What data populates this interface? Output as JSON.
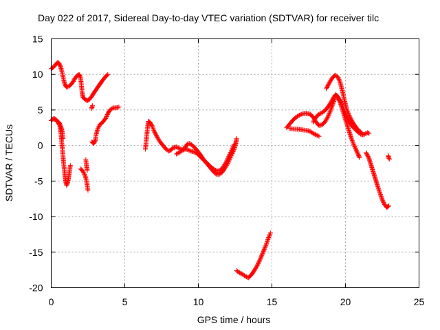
{
  "chart_data": {
    "type": "scatter",
    "title": "Day 022 of 2017, Sidereal Day-to-day VTEC variation (SDTVAR) for receiver tilc",
    "xlabel": "GPS time / hours",
    "ylabel": "SDTVAR / TECUs",
    "xlim": [
      0,
      25
    ],
    "ylim": [
      -20,
      15
    ],
    "x_ticks": [
      0,
      5,
      10,
      15,
      20,
      25
    ],
    "y_ticks": [
      -20,
      -15,
      -10,
      -5,
      0,
      5,
      10,
      15
    ],
    "x_tick_labels": [
      "0",
      "5",
      "10",
      "15",
      "20",
      "25"
    ],
    "y_tick_labels": [
      "-20",
      "-15",
      "-10",
      "-5",
      "0",
      "5",
      "10",
      "15"
    ],
    "grid": true,
    "marker": "plus",
    "color": "#ff0000",
    "segments": [
      [
        [
          0.0,
          10.8
        ],
        [
          0.15,
          11.0
        ],
        [
          0.3,
          11.4
        ],
        [
          0.45,
          11.7
        ],
        [
          0.55,
          11.5
        ],
        [
          0.65,
          11.0
        ],
        [
          0.75,
          10.2
        ],
        [
          0.85,
          9.2
        ],
        [
          0.95,
          8.5
        ],
        [
          1.05,
          8.2
        ],
        [
          1.2,
          8.3
        ],
        [
          1.35,
          8.6
        ],
        [
          1.5,
          9.0
        ],
        [
          1.6,
          9.4
        ],
        [
          1.75,
          9.8
        ],
        [
          1.9,
          10.0
        ],
        [
          2.0,
          9.5
        ],
        [
          2.05,
          8.5
        ],
        [
          2.1,
          7.5
        ],
        [
          2.15,
          6.8
        ],
        [
          2.3,
          6.5
        ],
        [
          2.45,
          6.3
        ],
        [
          2.6,
          6.5
        ],
        [
          2.75,
          6.9
        ],
        [
          2.9,
          7.4
        ],
        [
          3.1,
          8.0
        ],
        [
          3.3,
          8.6
        ],
        [
          3.5,
          9.2
        ],
        [
          3.7,
          9.7
        ],
        [
          3.85,
          10.0
        ]
      ],
      [
        [
          0.0,
          3.5
        ],
        [
          0.1,
          3.7
        ],
        [
          0.2,
          3.8
        ],
        [
          0.35,
          3.6
        ],
        [
          0.5,
          3.2
        ],
        [
          0.6,
          2.6
        ],
        [
          0.65,
          1.8
        ],
        [
          0.7,
          0.8
        ],
        [
          0.75,
          -0.3
        ],
        [
          0.8,
          -1.5
        ],
        [
          0.85,
          -2.6
        ],
        [
          0.9,
          -3.6
        ],
        [
          0.95,
          -4.5
        ],
        [
          1.0,
          -5.2
        ],
        [
          1.05,
          -5.6
        ],
        [
          1.12,
          -5.2
        ],
        [
          1.18,
          -4.5
        ],
        [
          1.25,
          -3.6
        ],
        [
          1.3,
          -2.8
        ]
      ],
      [
        [
          0.35,
          3.4
        ],
        [
          0.5,
          3.3
        ],
        [
          0.6,
          3.0
        ],
        [
          0.7,
          2.4
        ],
        [
          0.75,
          1.8
        ],
        [
          0.8,
          1.0
        ]
      ],
      [
        [
          2.0,
          -3.3
        ],
        [
          2.15,
          -3.6
        ],
        [
          2.3,
          -4.2
        ],
        [
          2.4,
          -5.0
        ],
        [
          2.5,
          -6.3
        ]
      ],
      [
        [
          2.35,
          -2.0
        ],
        [
          2.4,
          -2.8
        ],
        [
          2.45,
          -3.5
        ]
      ],
      [
        [
          2.75,
          5.2
        ],
        [
          2.8,
          5.6
        ]
      ],
      [
        [
          2.75,
          0.5
        ],
        [
          2.9,
          0.3
        ],
        [
          3.0,
          0.7
        ],
        [
          3.05,
          1.5
        ],
        [
          3.15,
          2.3
        ],
        [
          3.3,
          2.9
        ],
        [
          3.5,
          3.3
        ],
        [
          3.7,
          3.8
        ],
        [
          3.85,
          4.5
        ],
        [
          4.0,
          5.0
        ],
        [
          4.2,
          5.3
        ],
        [
          4.4,
          5.3
        ],
        [
          4.6,
          5.4
        ]
      ],
      [
        [
          6.4,
          -0.5
        ],
        [
          6.45,
          0.5
        ],
        [
          6.5,
          1.5
        ],
        [
          6.55,
          2.5
        ],
        [
          6.6,
          3.4
        ],
        [
          6.7,
          3.3
        ],
        [
          6.85,
          2.8
        ],
        [
          7.0,
          2.0
        ],
        [
          7.2,
          1.2
        ],
        [
          7.4,
          0.5
        ],
        [
          7.6,
          0.0
        ],
        [
          7.8,
          -0.5
        ],
        [
          8.0,
          -0.8
        ],
        [
          8.15,
          -0.6
        ],
        [
          8.3,
          -0.3
        ],
        [
          8.5,
          -0.2
        ],
        [
          8.7,
          -0.4
        ],
        [
          8.9,
          -0.6
        ],
        [
          9.1,
          -0.3
        ],
        [
          9.25,
          0.2
        ],
        [
          9.4,
          0.3
        ],
        [
          9.6,
          0.0
        ],
        [
          9.8,
          -0.4
        ],
        [
          10.0,
          -0.9
        ],
        [
          10.2,
          -1.5
        ],
        [
          10.4,
          -2.1
        ],
        [
          10.6,
          -2.6
        ],
        [
          10.8,
          -3.1
        ],
        [
          11.0,
          -3.6
        ],
        [
          11.2,
          -4.0
        ],
        [
          11.4,
          -4.1
        ],
        [
          11.6,
          -3.8
        ],
        [
          11.8,
          -3.2
        ],
        [
          12.0,
          -2.5
        ],
        [
          12.2,
          -1.6
        ],
        [
          12.4,
          -0.7
        ],
        [
          12.55,
          0.3
        ],
        [
          12.6,
          1.0
        ]
      ],
      [
        [
          8.5,
          -1.2
        ],
        [
          8.7,
          -1.0
        ],
        [
          8.9,
          -0.7
        ],
        [
          9.1,
          -0.5
        ],
        [
          9.3,
          -0.6
        ],
        [
          9.5,
          -0.8
        ],
        [
          9.7,
          -0.9
        ],
        [
          9.9,
          -1.1
        ],
        [
          10.1,
          -1.5
        ],
        [
          10.3,
          -1.9
        ],
        [
          10.5,
          -2.3
        ],
        [
          10.7,
          -2.7
        ],
        [
          10.9,
          -3.1
        ],
        [
          11.1,
          -3.4
        ],
        [
          11.3,
          -3.6
        ],
        [
          11.5,
          -3.5
        ],
        [
          11.7,
          -3.0
        ],
        [
          11.9,
          -2.3
        ],
        [
          12.1,
          -1.4
        ],
        [
          12.3,
          -0.5
        ],
        [
          12.45,
          0.2
        ]
      ],
      [
        [
          12.6,
          -17.6
        ],
        [
          12.8,
          -17.9
        ],
        [
          13.0,
          -18.1
        ],
        [
          13.2,
          -18.4
        ],
        [
          13.4,
          -18.6
        ],
        [
          13.6,
          -18.2
        ],
        [
          13.8,
          -17.6
        ],
        [
          14.0,
          -16.9
        ],
        [
          14.2,
          -16.0
        ],
        [
          14.4,
          -15.0
        ],
        [
          14.6,
          -14.0
        ],
        [
          14.75,
          -13.1
        ],
        [
          14.9,
          -12.3
        ]
      ],
      [
        [
          16.0,
          2.5
        ],
        [
          16.2,
          3.0
        ],
        [
          16.4,
          3.5
        ],
        [
          16.6,
          3.9
        ],
        [
          16.8,
          4.2
        ],
        [
          17.0,
          4.4
        ],
        [
          17.2,
          4.5
        ],
        [
          17.4,
          4.5
        ],
        [
          17.6,
          4.4
        ],
        [
          17.8,
          4.0
        ],
        [
          18.0,
          3.3
        ],
        [
          18.2,
          2.8
        ],
        [
          18.4,
          2.9
        ],
        [
          18.6,
          3.3
        ],
        [
          18.8,
          4.0
        ],
        [
          19.0,
          5.0
        ],
        [
          19.2,
          6.2
        ],
        [
          19.35,
          7.0
        ],
        [
          19.5,
          6.8
        ],
        [
          19.65,
          6.0
        ],
        [
          19.8,
          5.0
        ],
        [
          19.95,
          4.0
        ],
        [
          20.1,
          3.0
        ],
        [
          20.25,
          2.0
        ],
        [
          20.4,
          1.0
        ],
        [
          20.55,
          0.2
        ],
        [
          20.7,
          -0.5
        ],
        [
          20.85,
          -1.2
        ],
        [
          20.95,
          -1.7
        ]
      ],
      [
        [
          16.2,
          2.4
        ],
        [
          16.5,
          2.3
        ],
        [
          16.8,
          2.3
        ],
        [
          17.1,
          2.2
        ],
        [
          17.4,
          2.1
        ],
        [
          17.6,
          2.0
        ],
        [
          17.8,
          1.7
        ],
        [
          18.0,
          1.5
        ],
        [
          18.2,
          1.3
        ]
      ],
      [
        [
          17.8,
          3.3
        ],
        [
          18.0,
          4.0
        ],
        [
          18.2,
          4.4
        ],
        [
          18.4,
          4.6
        ],
        [
          18.6,
          4.9
        ],
        [
          18.8,
          5.4
        ],
        [
          19.0,
          6.0
        ],
        [
          19.2,
          6.8
        ],
        [
          19.35,
          7.2
        ],
        [
          19.5,
          6.8
        ],
        [
          19.7,
          6.0
        ],
        [
          19.9,
          5.0
        ],
        [
          20.1,
          4.0
        ],
        [
          20.3,
          3.2
        ],
        [
          20.5,
          2.6
        ],
        [
          20.7,
          2.2
        ],
        [
          20.9,
          1.8
        ],
        [
          21.1,
          1.5
        ],
        [
          21.3,
          1.6
        ],
        [
          21.5,
          1.8
        ],
        [
          21.6,
          1.7
        ]
      ],
      [
        [
          18.7,
          8.0
        ],
        [
          18.9,
          8.8
        ],
        [
          19.1,
          9.5
        ],
        [
          19.3,
          9.9
        ],
        [
          19.5,
          9.6
        ],
        [
          19.65,
          8.8
        ],
        [
          19.8,
          7.6
        ],
        [
          19.95,
          6.2
        ],
        [
          20.1,
          5.0
        ],
        [
          20.3,
          4.0
        ],
        [
          20.5,
          3.2
        ],
        [
          20.7,
          2.6
        ],
        [
          20.9,
          2.1
        ],
        [
          21.1,
          1.8
        ]
      ],
      [
        [
          21.4,
          -1.0
        ],
        [
          21.6,
          -1.8
        ],
        [
          21.75,
          -2.8
        ],
        [
          21.9,
          -3.8
        ],
        [
          22.05,
          -4.8
        ],
        [
          22.2,
          -5.8
        ],
        [
          22.35,
          -6.7
        ],
        [
          22.5,
          -7.6
        ],
        [
          22.65,
          -8.3
        ],
        [
          22.8,
          -8.7
        ],
        [
          22.95,
          -8.5
        ]
      ],
      [
        [
          22.9,
          -1.4
        ],
        [
          22.95,
          -1.8
        ],
        [
          23.0,
          -1.9
        ]
      ]
    ]
  }
}
